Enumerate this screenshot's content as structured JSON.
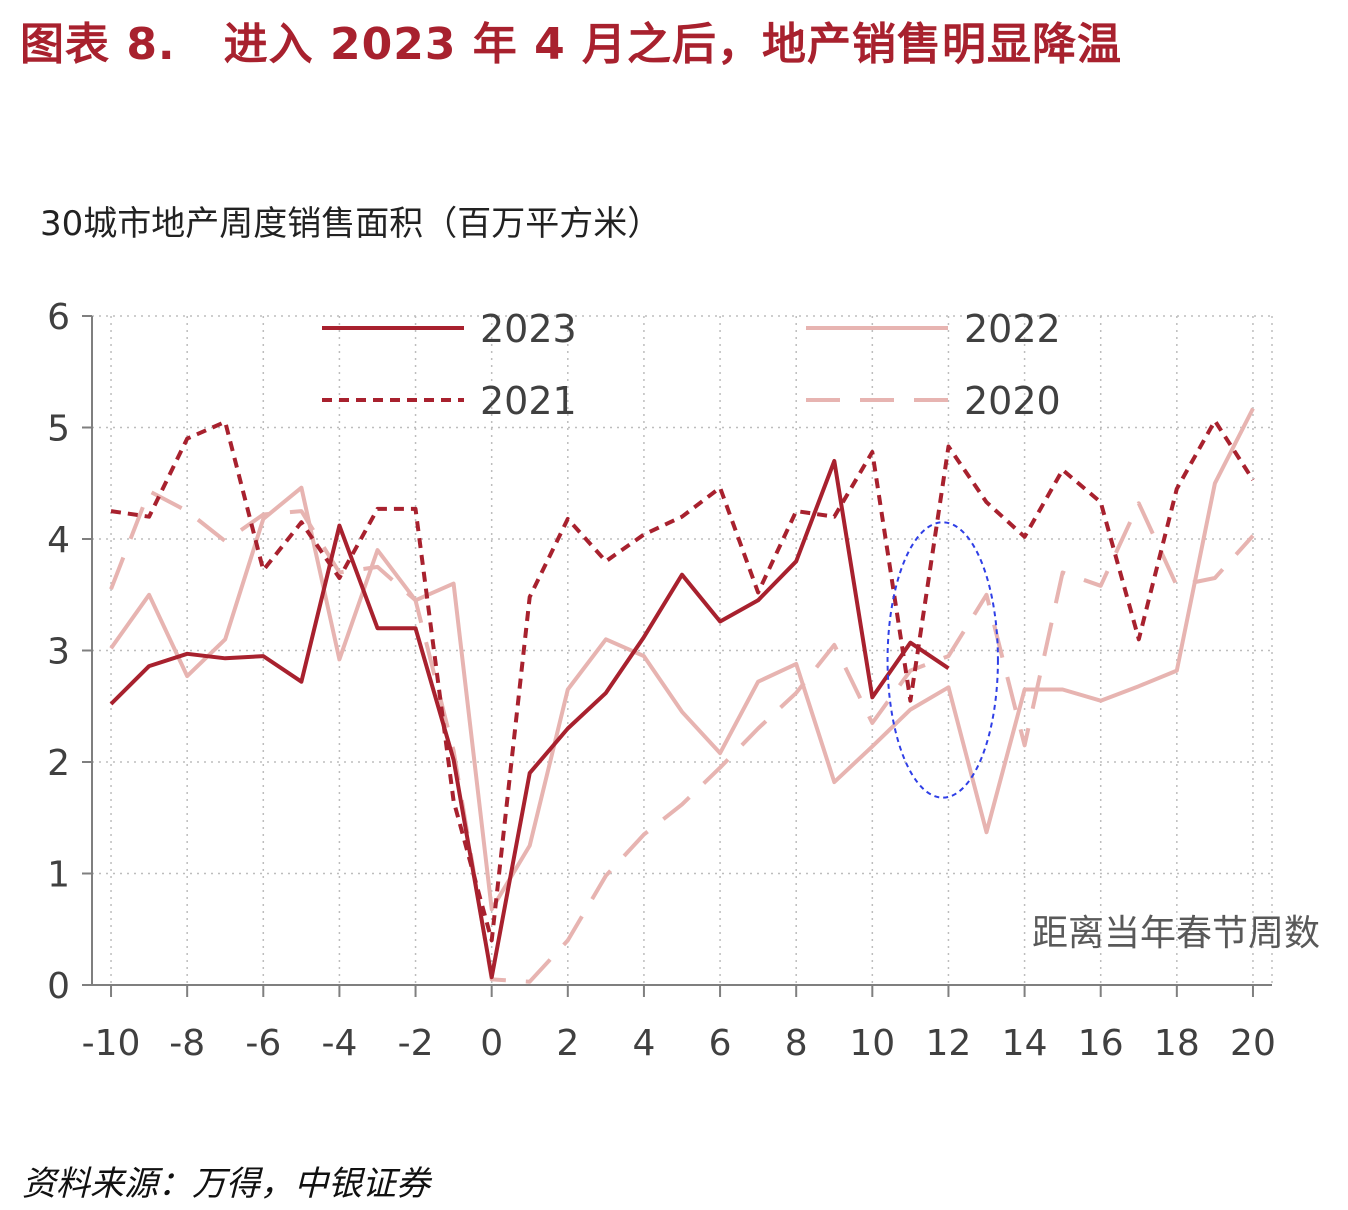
{
  "header": {
    "figure_number": "图表 8.",
    "title": "进入 2023 年 4 月之后，地产销售明显降温"
  },
  "source": "资料来源：万得，中银证券",
  "chart_data": {
    "type": "line",
    "title": "30城市地产周度销售面积（百万平方米）",
    "xlabel": "距离当年春节周数",
    "ylabel": "",
    "xlim": [
      -10.5,
      20.5
    ],
    "ylim": [
      0,
      6
    ],
    "x_ticks": [
      -10,
      -8,
      -6,
      -4,
      -2,
      0,
      2,
      4,
      6,
      8,
      10,
      12,
      14,
      16,
      18,
      20
    ],
    "x_tick_labels": [
      "-10",
      "-8",
      "-6",
      "-4",
      "-2",
      "0",
      "2",
      "4",
      "6",
      "8",
      "10",
      "12",
      "14",
      "16",
      "18",
      "20"
    ],
    "y_ticks": [
      0,
      1,
      2,
      3,
      4,
      5,
      6
    ],
    "y_tick_labels": [
      "0",
      "1",
      "2",
      "3",
      "4",
      "5",
      "6"
    ],
    "grid": true,
    "legend_position": "top",
    "annotation": "dashed blue ellipse around weeks 10-13",
    "series": [
      {
        "name": "2023",
        "color": "#a8212e",
        "style": "solid",
        "x": [
          -10,
          -9,
          -8,
          -7,
          -6,
          -5,
          -4,
          -3,
          -2,
          -1,
          0,
          1,
          2,
          3,
          4,
          5,
          6,
          7,
          8,
          9,
          10,
          11,
          12
        ],
        "values": [
          2.52,
          2.86,
          2.97,
          2.93,
          2.95,
          2.72,
          4.12,
          3.2,
          3.2,
          2.02,
          0.07,
          1.9,
          2.3,
          2.62,
          3.12,
          3.68,
          3.26,
          3.45,
          3.8,
          4.7,
          2.58,
          3.07,
          2.84
        ]
      },
      {
        "name": "2022",
        "color": "#e7b4b1",
        "style": "solid",
        "x": [
          -10,
          -9,
          -8,
          -7,
          -6,
          -5,
          -4,
          -3,
          -2,
          -1,
          0,
          1,
          2,
          3,
          4,
          5,
          6,
          7,
          8,
          9,
          10,
          11,
          12,
          13,
          14,
          15,
          16,
          17,
          18,
          19,
          20
        ],
        "values": [
          3.02,
          3.5,
          2.77,
          3.1,
          4.18,
          4.46,
          2.92,
          3.9,
          3.45,
          3.6,
          0.68,
          1.25,
          2.65,
          3.1,
          2.95,
          2.45,
          2.08,
          2.72,
          2.88,
          1.82,
          2.14,
          2.47,
          2.67,
          1.37,
          2.65,
          2.65,
          2.55,
          2.68,
          2.82,
          4.5,
          5.17
        ]
      },
      {
        "name": "2021",
        "color": "#a8212e",
        "style": "dashed",
        "x": [
          -10,
          -9,
          -8,
          -7,
          -6,
          -5,
          -4,
          -3,
          -2,
          -1,
          0,
          1,
          2,
          3,
          4,
          5,
          6,
          7,
          8,
          9,
          10,
          11,
          12,
          13,
          14,
          15,
          16,
          17,
          18,
          19,
          20
        ],
        "values": [
          4.25,
          4.2,
          4.9,
          5.05,
          3.72,
          4.15,
          3.65,
          4.27,
          4.27,
          1.65,
          0.4,
          3.48,
          4.18,
          3.8,
          4.04,
          4.2,
          4.46,
          3.52,
          4.25,
          4.2,
          4.78,
          2.55,
          4.83,
          4.33,
          4.02,
          4.62,
          4.33,
          3.1,
          4.45,
          5.06,
          4.53
        ]
      },
      {
        "name": "2020",
        "color": "#e7b4b1",
        "style": "longdash",
        "x": [
          -10,
          -9,
          -8,
          -7,
          -6,
          -5,
          -4,
          -3,
          -2,
          -1,
          0,
          1,
          2,
          3,
          4,
          5,
          6,
          7,
          8,
          9,
          10,
          11,
          12,
          13,
          14,
          15,
          16,
          17,
          18,
          19,
          20
        ],
        "values": [
          3.55,
          4.43,
          4.25,
          3.98,
          4.22,
          4.25,
          3.7,
          3.75,
          3.45,
          2.1,
          0.05,
          0.03,
          0.4,
          0.98,
          1.35,
          1.62,
          1.95,
          2.3,
          2.62,
          3.05,
          2.35,
          2.82,
          2.95,
          3.5,
          2.15,
          3.7,
          3.58,
          4.32,
          3.58,
          3.65,
          4.03
        ]
      }
    ]
  }
}
